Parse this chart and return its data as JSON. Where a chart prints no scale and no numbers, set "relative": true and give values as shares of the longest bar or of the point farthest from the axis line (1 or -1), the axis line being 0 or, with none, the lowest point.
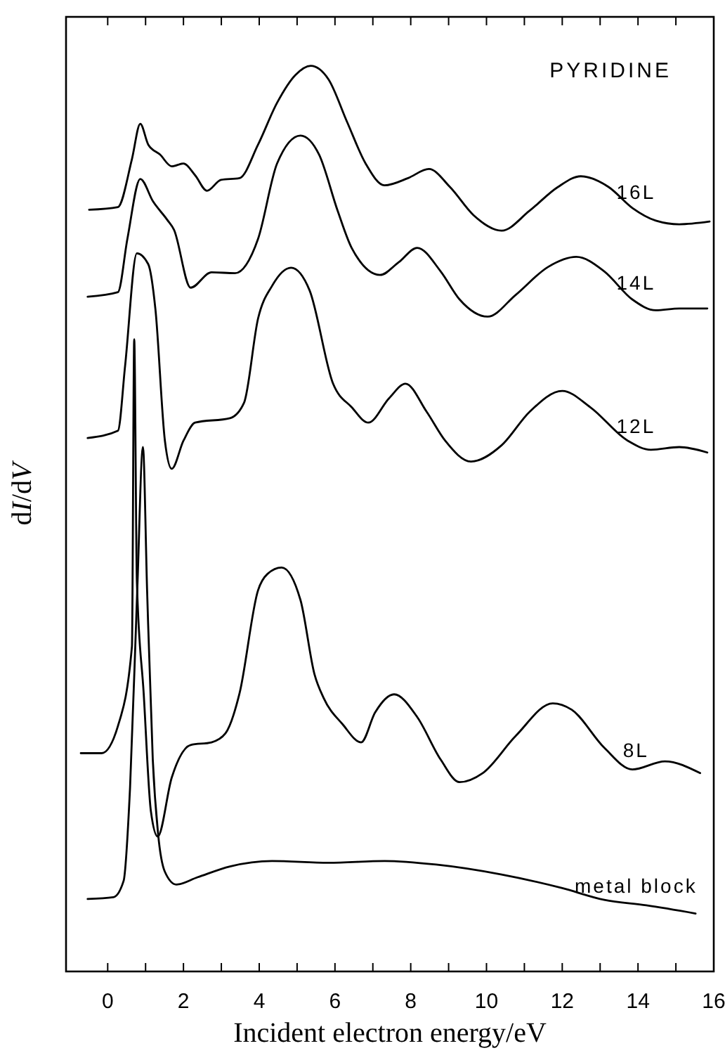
{
  "chart_data": {
    "type": "line",
    "relative": true,
    "xlabel": "Incident electron energy/eV",
    "ylabel": "dI/dV",
    "annotations": [
      "PYRIDINE"
    ],
    "xlim": [
      -1.1,
      16
    ],
    "xticks": [
      0,
      {
        "value": 1,
        "label": null
      },
      2,
      {
        "value": 3,
        "label": null
      },
      4,
      {
        "value": 5,
        "label": null
      },
      6,
      {
        "value": 7,
        "label": null
      },
      8,
      {
        "value": 9,
        "label": null
      },
      10,
      {
        "value": 11,
        "label": null
      },
      12,
      {
        "value": 13,
        "label": null
      },
      14,
      {
        "value": 15,
        "label": null
      },
      16
    ],
    "series": [
      {
        "name": "16L",
        "color": "#000000",
        "x": [
          -0.49,
          0.27,
          0.64,
          0.86,
          1.07,
          1.38,
          1.69,
          2.0,
          2.31,
          2.62,
          2.99,
          3.48,
          3.97,
          4.47,
          4.96,
          5.36,
          5.83,
          6.32,
          6.81,
          7.31,
          7.93,
          8.48,
          9.04,
          9.66,
          10.4,
          11.14,
          11.88,
          12.49,
          13.23,
          13.85,
          14.47,
          15.09,
          15.89
        ],
        "values": [
          0.841,
          0.844,
          0.897,
          0.936,
          0.913,
          0.902,
          0.889,
          0.892,
          0.879,
          0.862,
          0.874,
          0.876,
          0.913,
          0.959,
          0.99,
          1.0,
          0.985,
          0.938,
          0.892,
          0.868,
          0.876,
          0.886,
          0.866,
          0.835,
          0.818,
          0.84,
          0.866,
          0.878,
          0.866,
          0.843,
          0.829,
          0.825,
          0.828
        ]
      },
      {
        "name": "14L",
        "color": "#000000",
        "x": [
          -0.53,
          0.27,
          0.52,
          0.86,
          1.2,
          1.57,
          1.75,
          2.19,
          2.74,
          3.36,
          3.97,
          4.47,
          5.09,
          5.58,
          6.07,
          6.44,
          7.19,
          7.68,
          8.17,
          8.79,
          9.29,
          10.03,
          10.77,
          11.63,
          12.37,
          13.11,
          13.85,
          14.47,
          15.09,
          15.83
        ],
        "values": [
          0.745,
          0.75,
          0.809,
          0.875,
          0.85,
          0.83,
          0.819,
          0.755,
          0.772,
          0.771,
          0.809,
          0.892,
          0.923,
          0.902,
          0.84,
          0.799,
          0.769,
          0.783,
          0.799,
          0.773,
          0.742,
          0.723,
          0.747,
          0.778,
          0.789,
          0.773,
          0.742,
          0.73,
          0.732,
          0.732
        ]
      },
      {
        "name": "12L",
        "color": "#000000",
        "x": [
          -0.53,
          0.27,
          0.46,
          0.77,
          1.07,
          1.26,
          1.51,
          1.69,
          2.0,
          2.31,
          3.23,
          3.6,
          3.97,
          4.34,
          4.84,
          5.33,
          5.95,
          6.44,
          6.88,
          7.43,
          7.86,
          8.42,
          8.91,
          9.59,
          10.4,
          11.14,
          12.0,
          12.74,
          13.73,
          14.34,
          15.09,
          15.83
        ],
        "values": [
          0.589,
          0.597,
          0.669,
          0.793,
          0.781,
          0.731,
          0.586,
          0.555,
          0.586,
          0.606,
          0.611,
          0.628,
          0.721,
          0.757,
          0.777,
          0.752,
          0.649,
          0.623,
          0.606,
          0.633,
          0.649,
          0.618,
          0.586,
          0.563,
          0.581,
          0.618,
          0.641,
          0.623,
          0.586,
          0.576,
          0.579,
          0.573
        ]
      },
      {
        "name": "8L",
        "color": "#000000",
        "x": [
          -0.71,
          -0.16,
          0.27,
          0.64,
          0.7,
          0.77,
          0.95,
          1.14,
          1.32,
          1.69,
          2.19,
          2.74,
          3.11,
          3.48,
          3.97,
          4.22,
          4.59,
          5.09,
          5.46,
          5.7,
          6.2,
          6.69,
          7.06,
          7.56,
          8.17,
          8.79,
          9.29,
          9.9,
          10.77,
          11.75,
          12.25,
          13.11,
          13.85,
          14.71,
          15.64
        ],
        "values": [
          0.241,
          0.241,
          0.271,
          0.359,
          0.698,
          0.431,
          0.307,
          0.177,
          0.149,
          0.214,
          0.25,
          0.253,
          0.263,
          0.307,
          0.421,
          0.439,
          0.446,
          0.41,
          0.328,
          0.302,
          0.273,
          0.253,
          0.286,
          0.306,
          0.281,
          0.234,
          0.209,
          0.219,
          0.26,
          0.296,
          0.289,
          0.247,
          0.223,
          0.232,
          0.219
        ]
      },
      {
        "name": "metal block",
        "color": "#000000",
        "x": [
          -0.53,
          0.15,
          0.42,
          0.59,
          0.78,
          0.93,
          1.04,
          1.19,
          1.33,
          1.51,
          1.81,
          2.37,
          3.23,
          4.34,
          5.83,
          7.31,
          8.67,
          10.4,
          12.0,
          13.11,
          14.22,
          15.52
        ],
        "values": [
          0.08,
          0.082,
          0.1,
          0.203,
          0.421,
          0.579,
          0.421,
          0.234,
          0.152,
          0.11,
          0.096,
          0.104,
          0.116,
          0.122,
          0.12,
          0.122,
          0.118,
          0.107,
          0.092,
          0.079,
          0.073,
          0.064
        ]
      }
    ]
  }
}
